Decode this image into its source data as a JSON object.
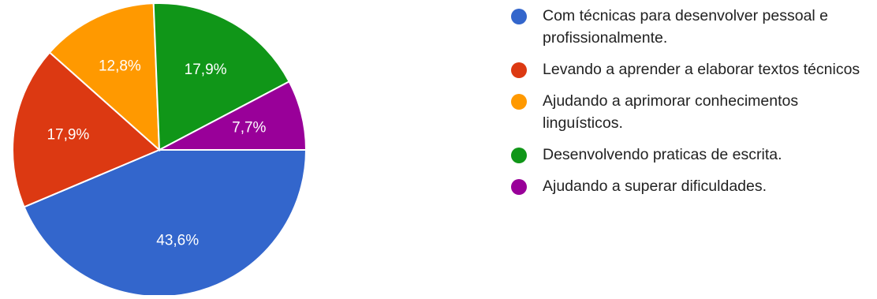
{
  "chart_data": {
    "type": "pie",
    "title": "",
    "slices": [
      {
        "label": "Com técnicas para desenvolver pessoal e profissionalmente.",
        "value": 43.6,
        "value_label": "43,6%",
        "color": "#3366cc"
      },
      {
        "label": "Levando a aprender a elaborar textos técnicos",
        "value": 17.9,
        "value_label": "17,9%",
        "color": "#dc3912"
      },
      {
        "label": "Ajudando a aprimorar conhecimentos linguísticos.",
        "value": 12.8,
        "value_label": "12,8%",
        "color": "#ff9900"
      },
      {
        "label": "Desenvolvendo praticas de escrita.",
        "value": 17.9,
        "value_label": "17,9%",
        "color": "#109618"
      },
      {
        "label": "Ajudando a superar dificuldades.",
        "value": 7.7,
        "value_label": "7,7%",
        "color": "#990099"
      }
    ],
    "legend_position": "right",
    "start": "3 o'clock",
    "direction": "clockwise"
  }
}
